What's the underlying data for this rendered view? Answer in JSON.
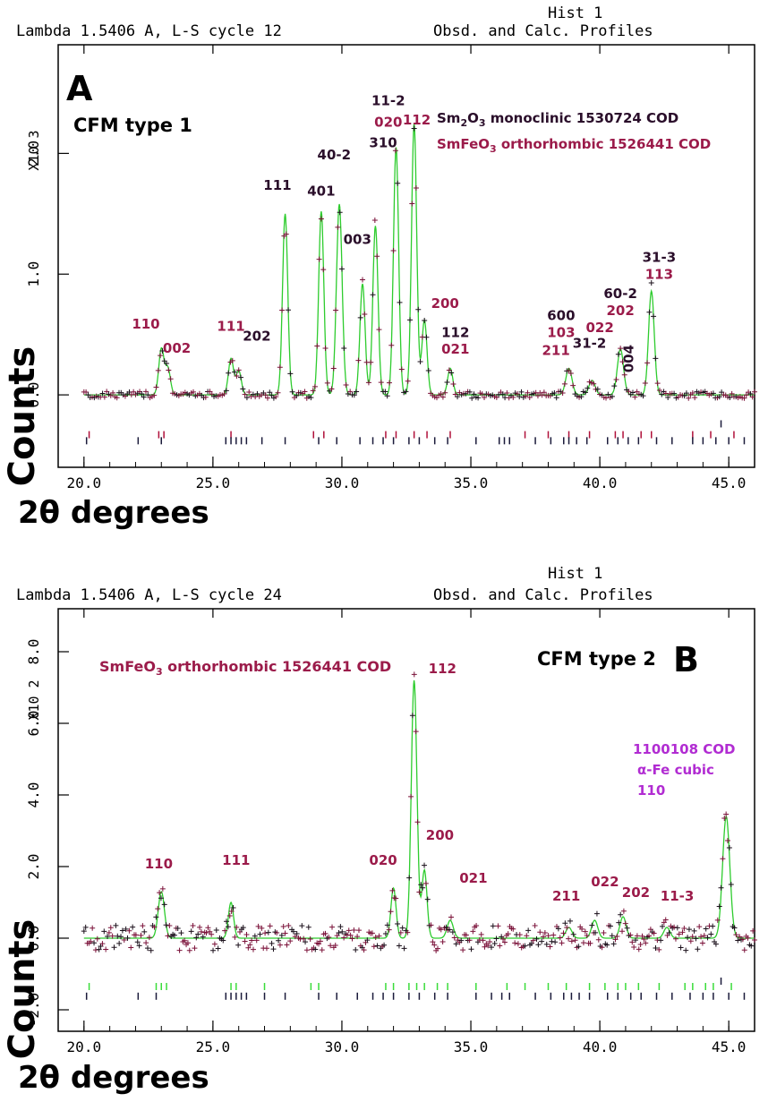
{
  "colors": {
    "observed": "#7a1038",
    "fit": "#2ecc2e",
    "hkl_red": "#9b1b4a",
    "hkl_dark": "#2a0e2a",
    "hkl_purple": "#b12cd2",
    "tick_dark": "#1a1a3a",
    "tick_red": "#b0103a",
    "tick_green": "#3adc3a",
    "axis": "#000000"
  },
  "chart_data": [
    {
      "type": "line",
      "panel": "A",
      "header_left": "Lambda 1.5406 A, L-S cycle   12",
      "header_hist": "Hist   1",
      "header_right": "Obsd. and Calc. Profiles",
      "sample": "CFM type 1",
      "legend": [
        {
          "pre": "Sm",
          "sub1": "2",
          "mid": "O",
          "sub2": "3",
          "post": " monoclinic 1530724 COD",
          "color": "hkl_dark"
        },
        {
          "pre": "SmFeO",
          "sub1": "3",
          "mid": "",
          "sub2": "",
          "post": " orthorhombic 1526441 COD",
          "color": "hkl_red"
        }
      ],
      "xlabel": "2θ degrees",
      "ylabel": "Counts",
      "y_multiplier": "X10 3",
      "xlim": [
        19.0,
        46.0
      ],
      "ylim": [
        -0.6,
        2.9
      ],
      "x_ticks": [
        "20.0",
        "25.0",
        "30.0",
        "35.0",
        "40.0",
        "45.0"
      ],
      "y_ticks": [
        "0.0",
        "1.0",
        "2.0"
      ],
      "baseline": 0.0,
      "peaks": [
        {
          "x": 23.0,
          "h": 0.38,
          "w": 0.1
        },
        {
          "x": 23.25,
          "h": 0.22,
          "w": 0.1
        },
        {
          "x": 25.7,
          "h": 0.3,
          "w": 0.1
        },
        {
          "x": 26.0,
          "h": 0.2,
          "w": 0.1
        },
        {
          "x": 27.8,
          "h": 1.5,
          "w": 0.1
        },
        {
          "x": 29.2,
          "h": 1.52,
          "w": 0.1
        },
        {
          "x": 29.9,
          "h": 1.58,
          "w": 0.11
        },
        {
          "x": 30.8,
          "h": 0.92,
          "w": 0.1
        },
        {
          "x": 31.3,
          "h": 1.4,
          "w": 0.1
        },
        {
          "x": 32.1,
          "h": 2.05,
          "w": 0.1
        },
        {
          "x": 32.8,
          "h": 2.25,
          "w": 0.1
        },
        {
          "x": 33.2,
          "h": 0.62,
          "w": 0.1
        },
        {
          "x": 34.2,
          "h": 0.22,
          "w": 0.1
        },
        {
          "x": 38.8,
          "h": 0.22,
          "w": 0.12
        },
        {
          "x": 39.7,
          "h": 0.12,
          "w": 0.12
        },
        {
          "x": 40.8,
          "h": 0.38,
          "w": 0.12
        },
        {
          "x": 42.0,
          "h": 0.86,
          "w": 0.11
        }
      ],
      "labels": [
        {
          "text": "110",
          "x": 22.4,
          "y": 0.55,
          "color": "hkl_red"
        },
        {
          "text": "002",
          "x": 23.6,
          "y": 0.35,
          "color": "hkl_red"
        },
        {
          "text": "111",
          "x": 25.7,
          "y": 0.53,
          "color": "hkl_red"
        },
        {
          "text": "202",
          "x": 26.7,
          "y": 0.45,
          "color": "hkl_dark"
        },
        {
          "text": "111",
          "x": 27.5,
          "y": 1.7,
          "color": "hkl_dark"
        },
        {
          "text": "401",
          "x": 29.2,
          "y": 1.65,
          "color": "hkl_dark"
        },
        {
          "text": "40-2",
          "x": 29.7,
          "y": 1.95,
          "color": "hkl_dark"
        },
        {
          "text": "310",
          "x": 31.6,
          "y": 2.05,
          "color": "hkl_dark"
        },
        {
          "text": "003",
          "x": 30.6,
          "y": 1.25,
          "color": "hkl_dark"
        },
        {
          "text": "11-2",
          "x": 31.8,
          "y": 2.4,
          "color": "hkl_dark"
        },
        {
          "text": "020",
          "x": 31.8,
          "y": 2.22,
          "color": "hkl_red"
        },
        {
          "text": "112",
          "x": 32.9,
          "y": 2.24,
          "color": "hkl_red"
        },
        {
          "text": "200",
          "x": 34.0,
          "y": 0.72,
          "color": "hkl_red"
        },
        {
          "text": "112",
          "x": 34.4,
          "y": 0.48,
          "color": "hkl_dark"
        },
        {
          "text": "021",
          "x": 34.4,
          "y": 0.34,
          "color": "hkl_red"
        },
        {
          "text": "600",
          "x": 38.5,
          "y": 0.62,
          "color": "hkl_dark"
        },
        {
          "text": "103",
          "x": 38.5,
          "y": 0.48,
          "color": "hkl_red"
        },
        {
          "text": "211",
          "x": 38.3,
          "y": 0.33,
          "color": "hkl_red"
        },
        {
          "text": "022",
          "x": 40.0,
          "y": 0.52,
          "color": "hkl_red"
        },
        {
          "text": "31-2",
          "x": 39.6,
          "y": 0.39,
          "color": "hkl_dark"
        },
        {
          "text": "60-2",
          "x": 40.8,
          "y": 0.8,
          "color": "hkl_dark"
        },
        {
          "text": "202",
          "x": 40.8,
          "y": 0.66,
          "color": "hkl_red"
        },
        {
          "text": "004",
          "x": 41.3,
          "y": 0.3,
          "color": "hkl_dark",
          "rotate": -90
        },
        {
          "text": "31-3",
          "x": 42.3,
          "y": 1.1,
          "color": "hkl_dark"
        },
        {
          "text": "113",
          "x": 42.3,
          "y": 0.96,
          "color": "hkl_red"
        }
      ],
      "tick_rows": [
        {
          "y": -0.33,
          "color": "tick_red",
          "x": [
            20.2,
            22.9,
            23.1,
            25.7,
            28.9,
            29.3,
            31.7,
            32.1,
            32.8,
            33.3,
            34.2,
            37.1,
            38.0,
            38.8,
            39.6,
            40.6,
            40.9,
            41.6,
            42.0,
            43.6,
            44.3,
            45.2
          ]
        },
        {
          "y": -0.38,
          "color": "tick_dark",
          "x": [
            20.1,
            22.1,
            23.0,
            25.5,
            25.7,
            25.9,
            26.1,
            26.3,
            26.9,
            27.8,
            29.1,
            29.8,
            30.7,
            31.2,
            31.6,
            32.0,
            32.6,
            33.0,
            33.6,
            34.1,
            35.2,
            36.1,
            36.3,
            36.5,
            37.5,
            38.1,
            38.6,
            38.8,
            39.1,
            39.5,
            40.3,
            40.7,
            41.1,
            41.5,
            42.2,
            42.8,
            43.6,
            44.0,
            44.5,
            45.0,
            45.6
          ]
        },
        {
          "y": -0.24,
          "color": "tick_dark",
          "x": [
            44.7
          ]
        }
      ]
    },
    {
      "type": "line",
      "panel": "B",
      "header_left": "Lambda 1.5406 A, L-S cycle   24",
      "header_hist": "Hist   1",
      "header_right": "Obsd. and Calc. Profiles",
      "sample": "CFM type 2",
      "legend": [
        {
          "pre": "SmFeO",
          "sub1": "3",
          "mid": "",
          "sub2": "",
          "post": " orthorhombic 1526441 COD",
          "color": "hkl_red"
        }
      ],
      "annotation": [
        "1100108 COD",
        "α-Fe cubic",
        "110"
      ],
      "xlabel": "2θ degrees",
      "ylabel": "Counts",
      "y_multiplier": "X10 2",
      "xlim": [
        19.0,
        46.0
      ],
      "ylim": [
        -2.6,
        9.2
      ],
      "x_ticks": [
        "20.0",
        "25.0",
        "30.0",
        "35.0",
        "40.0",
        "45.0"
      ],
      "y_ticks": [
        "-2.0",
        "0.0",
        "2.0",
        "4.0",
        "6.0",
        "8.0"
      ],
      "baseline": 0.0,
      "peaks": [
        {
          "x": 23.0,
          "h": 1.3,
          "w": 0.12
        },
        {
          "x": 25.7,
          "h": 1.0,
          "w": 0.1
        },
        {
          "x": 32.0,
          "h": 1.4,
          "w": 0.1
        },
        {
          "x": 32.8,
          "h": 7.2,
          "w": 0.11
        },
        {
          "x": 33.2,
          "h": 1.9,
          "w": 0.1
        },
        {
          "x": 34.2,
          "h": 0.5,
          "w": 0.12
        },
        {
          "x": 38.8,
          "h": 0.3,
          "w": 0.12
        },
        {
          "x": 39.8,
          "h": 0.5,
          "w": 0.12
        },
        {
          "x": 40.9,
          "h": 0.6,
          "w": 0.12
        },
        {
          "x": 42.6,
          "h": 0.3,
          "w": 0.12
        },
        {
          "x": 44.9,
          "h": 3.4,
          "w": 0.14
        }
      ],
      "labels": [
        {
          "text": "110",
          "x": 22.9,
          "y": 1.95,
          "color": "hkl_red"
        },
        {
          "text": "111",
          "x": 25.9,
          "y": 2.05,
          "color": "hkl_red"
        },
        {
          "text": "020",
          "x": 31.6,
          "y": 2.05,
          "color": "hkl_red"
        },
        {
          "text": "112",
          "x": 33.9,
          "y": 7.4,
          "color": "hkl_red"
        },
        {
          "text": "200",
          "x": 33.8,
          "y": 2.75,
          "color": "hkl_red"
        },
        {
          "text": "021",
          "x": 35.1,
          "y": 1.55,
          "color": "hkl_red"
        },
        {
          "text": "211",
          "x": 38.7,
          "y": 1.05,
          "color": "hkl_red"
        },
        {
          "text": "022",
          "x": 40.2,
          "y": 1.45,
          "color": "hkl_red"
        },
        {
          "text": "202",
          "x": 41.4,
          "y": 1.15,
          "color": "hkl_red"
        },
        {
          "text": "11-3",
          "x": 43.0,
          "y": 1.05,
          "color": "hkl_red"
        }
      ],
      "tick_rows": [
        {
          "y": -1.35,
          "color": "tick_green",
          "x": [
            20.2,
            22.8,
            23.0,
            23.2,
            25.7,
            25.9,
            27.0,
            28.8,
            29.1,
            31.7,
            32.0,
            32.6,
            32.9,
            33.2,
            33.7,
            34.1,
            35.2,
            36.4,
            37.1,
            38.0,
            38.7,
            39.6,
            40.2,
            40.7,
            41.0,
            41.5,
            42.3,
            43.3,
            43.6,
            44.1,
            44.4,
            45.1
          ]
        },
        {
          "y": -1.62,
          "color": "tick_dark",
          "x": [
            20.1,
            22.1,
            22.8,
            25.5,
            25.7,
            25.9,
            26.1,
            26.3,
            27.0,
            27.8,
            29.1,
            29.8,
            30.6,
            31.2,
            31.6,
            32.0,
            32.6,
            33.0,
            33.6,
            34.1,
            35.2,
            35.8,
            36.2,
            36.5,
            37.5,
            38.1,
            38.6,
            38.9,
            39.2,
            39.6,
            40.3,
            40.7,
            41.2,
            41.6,
            42.2,
            42.8,
            43.5,
            44.0,
            44.4,
            45.0,
            45.6
          ]
        },
        {
          "y": -1.2,
          "color": "tick_dark",
          "x": [
            44.7
          ]
        }
      ]
    }
  ]
}
